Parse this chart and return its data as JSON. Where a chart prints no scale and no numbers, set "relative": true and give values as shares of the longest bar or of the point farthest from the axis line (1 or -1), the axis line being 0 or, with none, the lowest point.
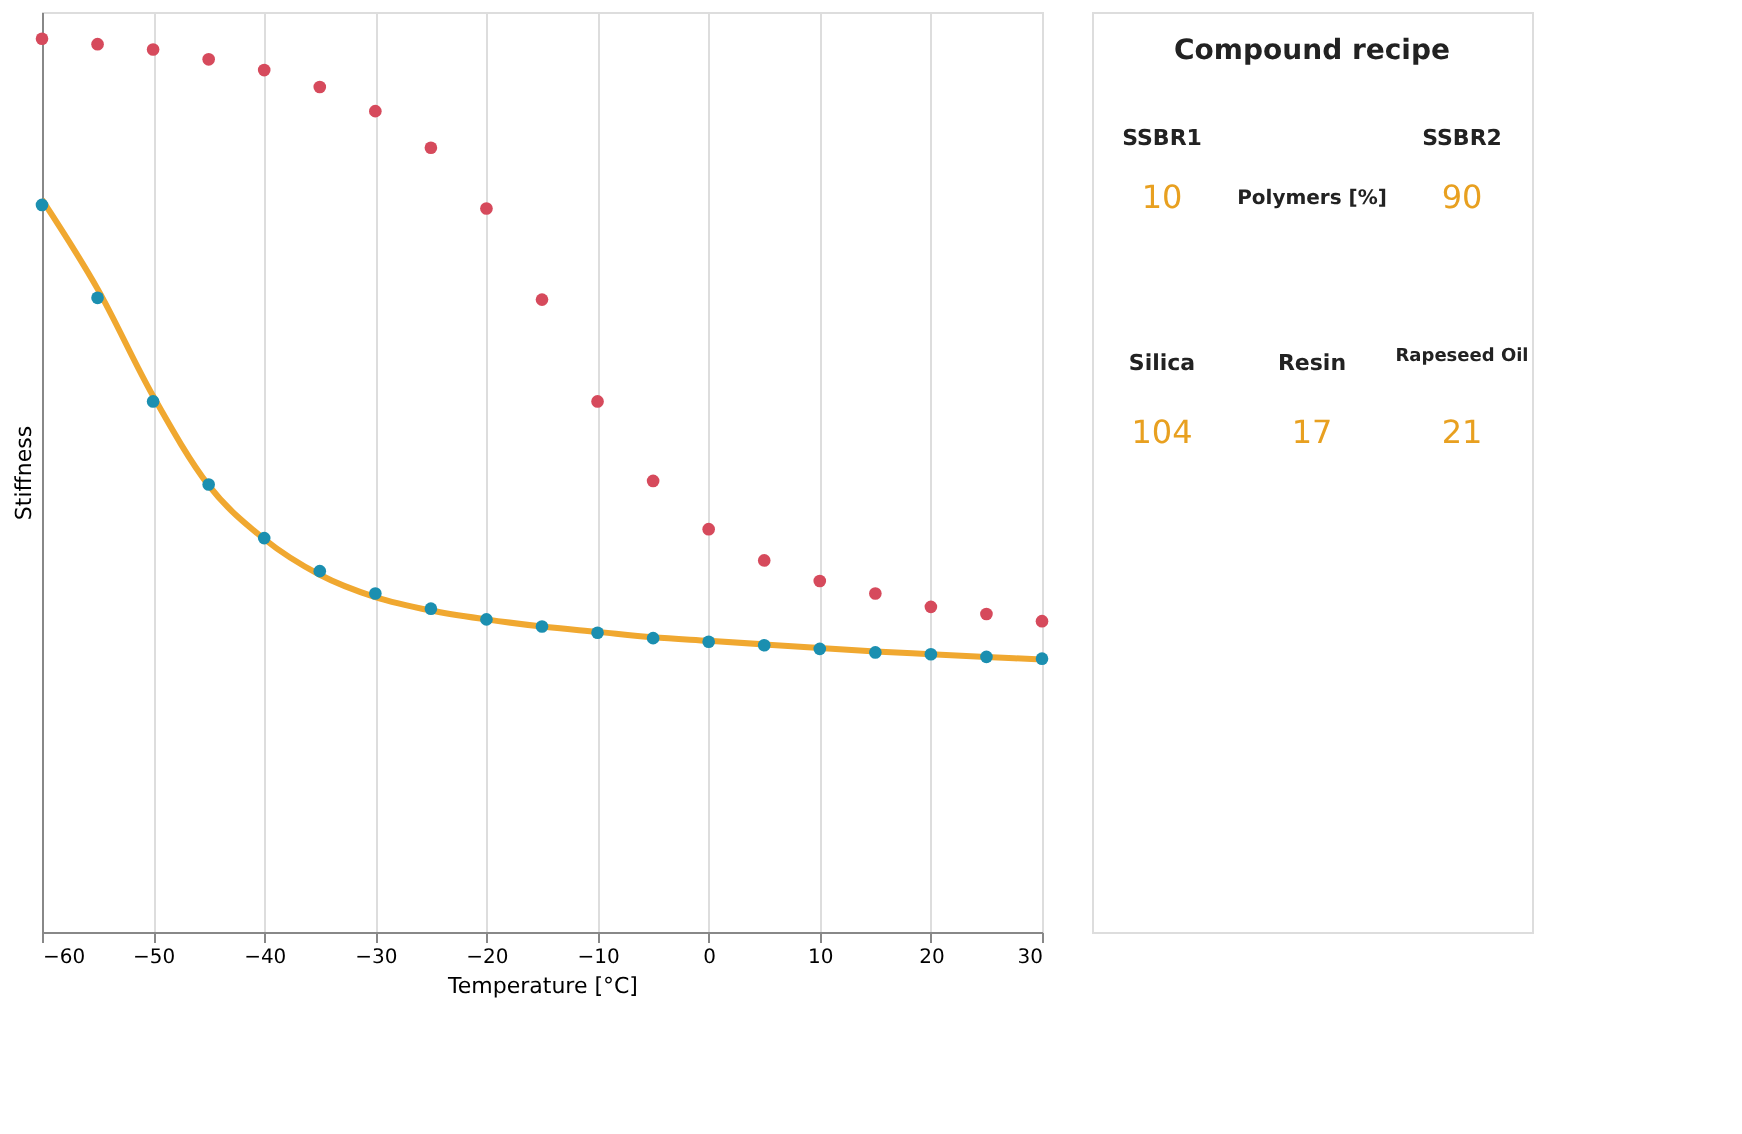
{
  "chart_data": [
    {
      "type": "scatter",
      "xlabel": "Temperature [°C]",
      "ylabel": "Stiffness",
      "relative": true,
      "grid": "x",
      "marker": "circle",
      "xlim": [
        -60,
        30
      ],
      "xticks": [
        -60,
        -50,
        -40,
        -30,
        -20,
        -10,
        0,
        10,
        20,
        30
      ],
      "x": [
        -60,
        -55,
        -50,
        -45,
        -40,
        -35,
        -30,
        -25,
        -20,
        -15,
        -10,
        -5,
        0,
        5,
        10,
        15,
        20,
        25,
        30
      ],
      "series": [
        {
          "color": "#d64a5c",
          "values": [
            1,
            0.994,
            0.988,
            0.977,
            0.965,
            0.946,
            0.919,
            0.878,
            0.81,
            0.708,
            0.594,
            0.505,
            0.451,
            0.416,
            0.393,
            0.379,
            0.364,
            0.356,
            0.348
          ]
        },
        {
          "type": "line",
          "color": "#f0a830",
          "marker": "none",
          "values": [
            0.82,
            0.72,
            0.6,
            0.5,
            0.44,
            0.4,
            0.375,
            0.36,
            0.35,
            0.342,
            0.336,
            0.33,
            0.326,
            0.322,
            0.318,
            0.314,
            0.311,
            0.308,
            0.305
          ]
        },
        {
          "color": "#1b8fb0",
          "values": [
            0.814,
            0.71,
            0.594,
            0.501,
            0.441,
            0.404,
            0.379,
            0.362,
            0.35,
            0.342,
            0.335,
            0.329,
            0.325,
            0.321,
            0.317,
            0.313,
            0.311,
            0.308,
            0.306
          ]
        }
      ]
    },
    {
      "type": "other",
      "annotations": [
        "Compound recipe",
        "SSBR1",
        "Polymers [%]",
        "SSBR2",
        "10",
        "90",
        "Silica",
        "Resin",
        "Rapeseed Oil",
        "104",
        "17",
        "21"
      ]
    }
  ]
}
